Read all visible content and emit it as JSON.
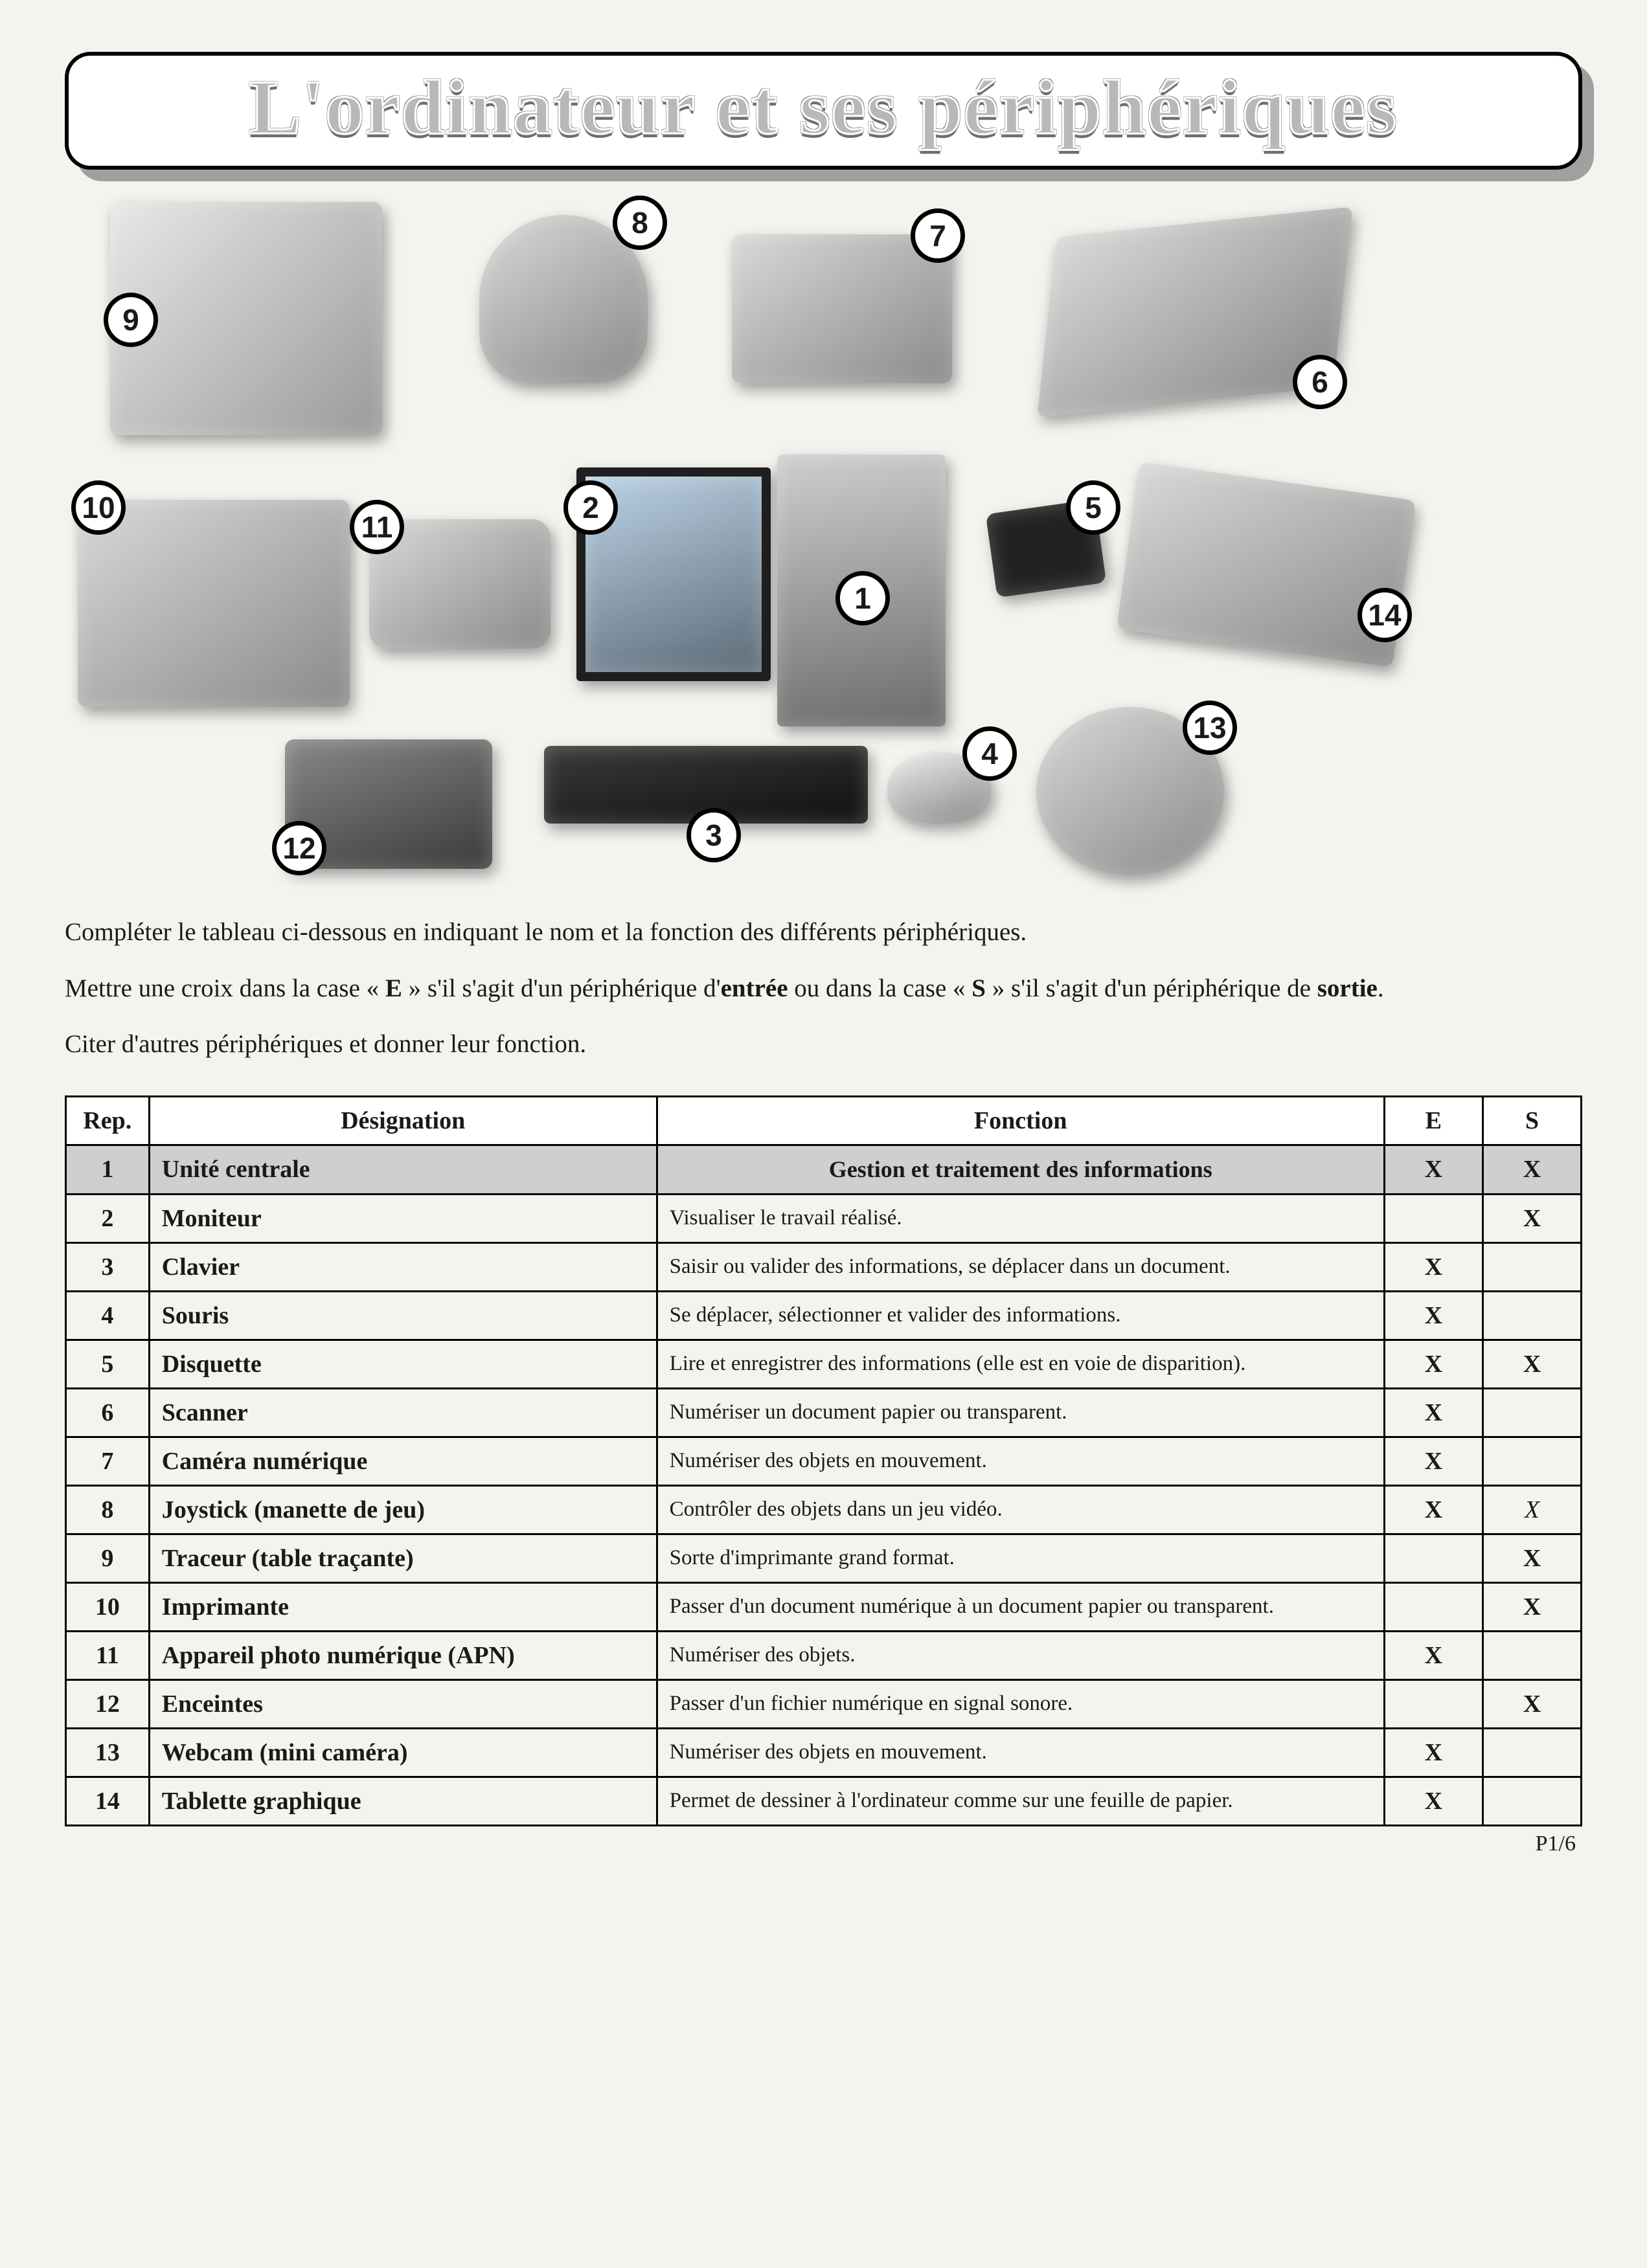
{
  "title": "L'ordinateur et ses périphériques",
  "devices": [
    {
      "num": "9",
      "name": "plotter-device",
      "badge_pos": "left:-10px;top:140px"
    },
    {
      "num": "8",
      "name": "joystick-device",
      "badge_pos": "right:-30px;top:-30px"
    },
    {
      "num": "7",
      "name": "camcorder-device",
      "badge_pos": "right:-20px;top:-40px"
    },
    {
      "num": "6",
      "name": "scanner-device",
      "badge_pos": "right:-10px;bottom:-10px"
    },
    {
      "num": "10",
      "name": "printer-device",
      "badge_pos": "left:-10px;top:-30px"
    },
    {
      "num": "11",
      "name": "digital-camera-device",
      "badge_pos": "left:-30px;top:-30px"
    },
    {
      "num": "2",
      "name": "monitor-device",
      "badge_pos": "left:-20px;top:20px"
    },
    {
      "num": "1",
      "name": "cpu-tower-device",
      "badge_pos": "left:90px;top:180px"
    },
    {
      "num": "5",
      "name": "floppy-disk-device",
      "badge_pos": "right:-30px;top:-40px"
    },
    {
      "num": "14",
      "name": "graphics-tablet-device",
      "badge_pos": "right:-10px;bottom:10px"
    },
    {
      "num": "12",
      "name": "speakers-device",
      "badge_pos": "left:-20px;bottom:-10px"
    },
    {
      "num": "3",
      "name": "keyboard-device",
      "badge_pos": "left:220px;bottom:-60px"
    },
    {
      "num": "4",
      "name": "mouse-device",
      "badge_pos": "right:-40px;top:-40px"
    },
    {
      "num": "13",
      "name": "webcam-device",
      "badge_pos": "right:-20px;top:-10px"
    }
  ],
  "instructions": {
    "p1": "Compléter le tableau ci-dessous en indiquant le nom et la fonction des différents périphériques.",
    "p2_a": "Mettre une croix dans la case « ",
    "p2_E": "E",
    "p2_b": " » s'il s'agit d'un périphérique d'",
    "p2_entree": "entrée",
    "p2_c": " ou dans la case « ",
    "p2_S": "S",
    "p2_d": " » s'il s'agit d'un périphérique de ",
    "p2_sortie": "sortie",
    "p2_e": ".",
    "p3": "Citer d'autres périphériques et donner leur fonction."
  },
  "table": {
    "headers": {
      "rep": "Rep.",
      "des": "Désignation",
      "fon": "Fonction",
      "e": "E",
      "s": "S"
    },
    "rows": [
      {
        "rep": "1",
        "des": "Unité centrale",
        "fon": "Gestion et traitement des informations",
        "e": "X",
        "s": "X",
        "highlight": true
      },
      {
        "rep": "2",
        "des": "Moniteur",
        "fon": "Visualiser le travail réalisé.",
        "e": "",
        "s": "X"
      },
      {
        "rep": "3",
        "des": "Clavier",
        "fon": "Saisir ou valider des informations, se déplacer dans un document.",
        "e": "X",
        "s": ""
      },
      {
        "rep": "4",
        "des": "Souris",
        "fon": "Se déplacer, sélectionner et valider des informations.",
        "e": "X",
        "s": ""
      },
      {
        "rep": "5",
        "des": "Disquette",
        "fon": "Lire et enregistrer des informations (elle est en voie de disparition).",
        "e": "X",
        "s": "X"
      },
      {
        "rep": "6",
        "des": "Scanner",
        "fon": "Numériser un document papier ou transparent.",
        "e": "X",
        "s": ""
      },
      {
        "rep": "7",
        "des": "Caméra numérique",
        "fon": "Numériser des objets en mouvement.",
        "e": "X",
        "s": ""
      },
      {
        "rep": "8",
        "des": "Joystick (manette de jeu)",
        "fon": "Contrôler des objets dans un jeu vidéo.",
        "e": "X",
        "s": "X",
        "s_italic": true
      },
      {
        "rep": "9",
        "des": "Traceur (table traçante)",
        "fon": "Sorte d'imprimante grand format.",
        "e": "",
        "s": "X"
      },
      {
        "rep": "10",
        "des": "Imprimante",
        "fon": "Passer d'un document numérique à un document papier ou transparent.",
        "e": "",
        "s": "X"
      },
      {
        "rep": "11",
        "des": "Appareil photo numérique (APN)",
        "fon": "Numériser des objets.",
        "e": "X",
        "s": ""
      },
      {
        "rep": "12",
        "des": "Enceintes",
        "fon": "Passer d'un fichier numérique en signal sonore.",
        "e": "",
        "s": "X"
      },
      {
        "rep": "13",
        "des": "Webcam (mini caméra)",
        "fon": "Numériser des objets en mouvement.",
        "e": "X",
        "s": ""
      },
      {
        "rep": "14",
        "des": "Tablette graphique",
        "fon": "Permet de dessiner à l'ordinateur comme sur une feuille de papier.",
        "e": "X",
        "s": ""
      }
    ]
  },
  "page_number": "P1/6",
  "colors": {
    "page_bg": "#f5f3ee",
    "title_fill": "#b8b8b8",
    "title_outline": "#7a7a7a",
    "table_border": "#000000",
    "row_highlight": "#cfcfcf"
  }
}
